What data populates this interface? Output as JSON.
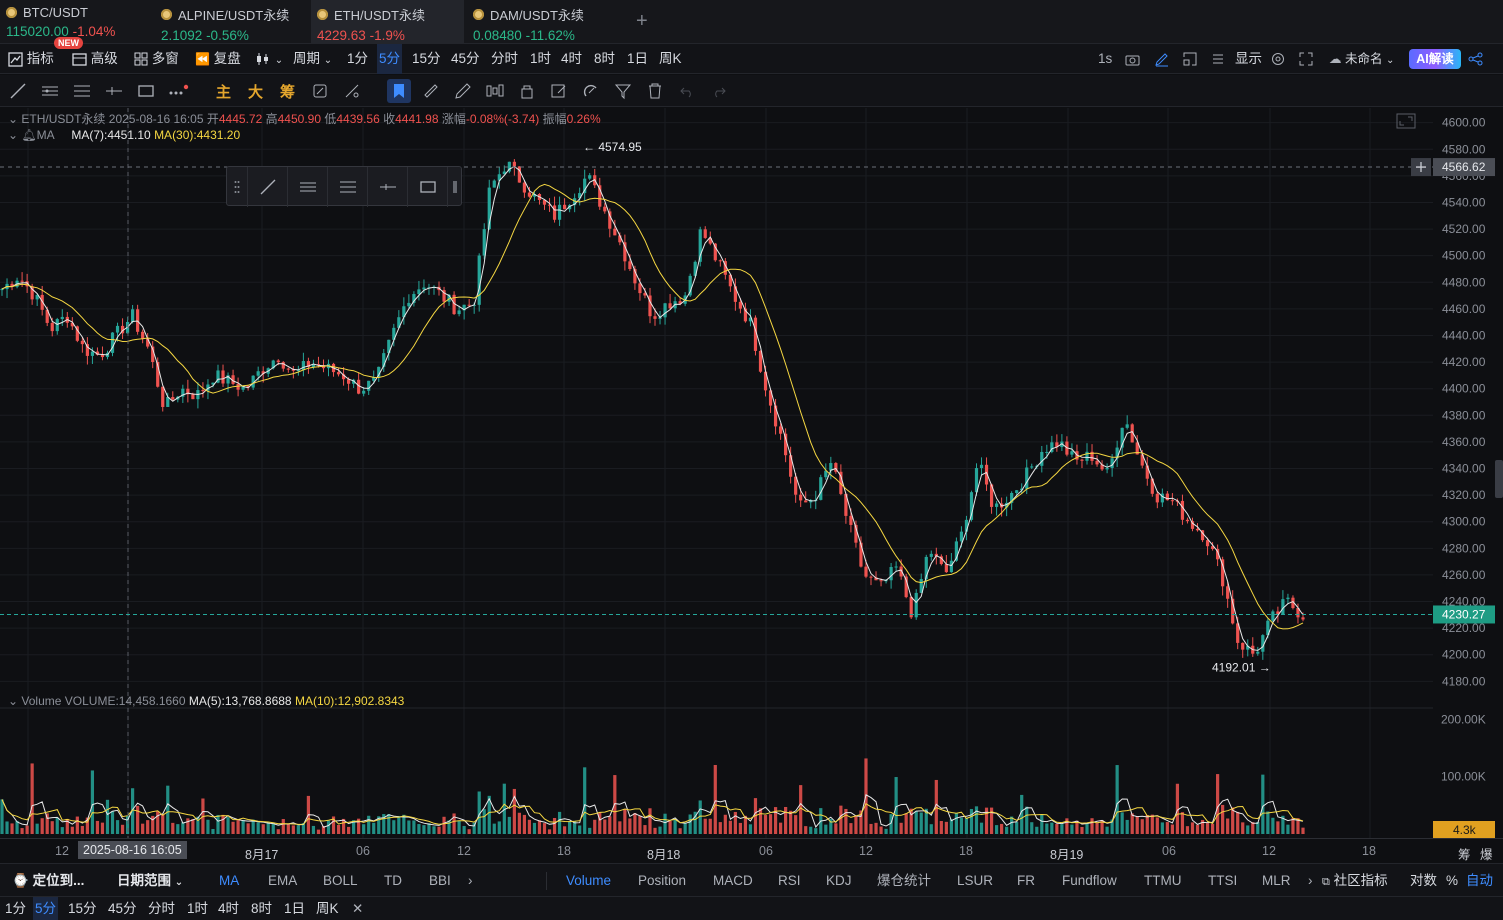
{
  "tabs": [
    {
      "symbol": "BTC/USDT",
      "price": "115020.00",
      "change": "-1.04%",
      "price_dir": "up",
      "change_dir": "down"
    },
    {
      "symbol": "ALPINE/USDT永续",
      "price": "2.1092",
      "change": "-0.56%",
      "price_dir": "up",
      "change_dir": "up"
    },
    {
      "symbol": "ETH/USDT永续",
      "price": "4229.63",
      "change": "-1.9%",
      "price_dir": "down",
      "change_dir": "down"
    },
    {
      "symbol": "DAM/USDT永续",
      "price": "0.08480",
      "change": "-11.62%",
      "price_dir": "up",
      "change_dir": "up"
    }
  ],
  "new_badge": "NEW",
  "add_tab": "+",
  "toolbar": {
    "indicator": "指标",
    "advanced": "高级",
    "multi_window": "多窗",
    "replay": "复盘",
    "period": "周期",
    "periods": [
      "1分",
      "5分",
      "15分",
      "45分",
      "分时",
      "1时",
      "4时",
      "8时",
      "1日",
      "周K"
    ],
    "selected_period": "5分",
    "interval": "1s",
    "display": "显示",
    "unnamed": "未命名",
    "ai": "AI解读"
  },
  "draw_tools": {
    "main": "主",
    "big": "大",
    "chip": "筹"
  },
  "legend": {
    "symbol": "ETH/USDT永续",
    "datetime": "2025-08-16 16:05",
    "open_label": "开",
    "open": "4445.72",
    "high_label": "高",
    "high": "4450.90",
    "low_label": "低",
    "low": "4439.56",
    "close_label": "收",
    "close": "4441.98",
    "chg_label": "涨幅",
    "chg": "-0.08%(-3.74)",
    "amp_label": "振幅",
    "amp": "0.26%",
    "ma_label": "MA",
    "ma7": "MA(7):4451.10",
    "ma30": "MA(30):4431.20"
  },
  "volume_legend": {
    "label": "Volume",
    "vol": "VOLUME:14,458.1660",
    "ma5": "MA(5):13,768.8688",
    "ma10": "MA(10):12,902.8343"
  },
  "annotations": {
    "high": "4574.95",
    "low": "4192.01"
  },
  "price_axis": {
    "ticks": [
      "4600.00",
      "4580.00",
      "4560.00",
      "4540.00",
      "4520.00",
      "4500.00",
      "4480.00",
      "4460.00",
      "4440.00",
      "4420.00",
      "4400.00",
      "4380.00",
      "4360.00",
      "4340.00",
      "4320.00",
      "4300.00",
      "4280.00",
      "4260.00",
      "4240.00",
      "4220.00",
      "4200.00",
      "4180.00"
    ],
    "crosshair_price": "4566.62",
    "last_price": "4230.27"
  },
  "volume_axis": {
    "ticks": [
      "200.00K",
      "100.00K"
    ],
    "last_volume": "4.3k"
  },
  "x_axis": {
    "labels": [
      "12",
      "8月17",
      "06",
      "12",
      "18",
      "8月18",
      "06",
      "12",
      "18",
      "8月19",
      "06",
      "12",
      "18"
    ],
    "crosshair_time": "2025-08-16 16:05",
    "corner": [
      "筹",
      "爆"
    ]
  },
  "chart_data": {
    "type": "candlestick",
    "symbol": "ETH/USDT永续",
    "interval": "5分",
    "price_range": [
      4175,
      4605
    ],
    "approx_close_path": [
      4475,
      4485,
      4470,
      4445,
      4455,
      4430,
      4425,
      4440,
      4455,
      4430,
      4385,
      4400,
      4395,
      4410,
      4405,
      4400,
      4415,
      4425,
      4410,
      4420,
      4415,
      4410,
      4400,
      4405,
      4440,
      4470,
      4480,
      4470,
      4460,
      4465,
      4550,
      4570,
      4555,
      4540,
      4530,
      4545,
      4560,
      4535,
      4510,
      4480,
      4455,
      4465,
      4470,
      4520,
      4495,
      4470,
      4450,
      4400,
      4360,
      4310,
      4320,
      4345,
      4300,
      4260,
      4250,
      4265,
      4230,
      4280,
      4260,
      4290,
      4345,
      4310,
      4320,
      4335,
      4355,
      4360,
      4345,
      4350,
      4335,
      4380,
      4345,
      4320,
      4315,
      4300,
      4290,
      4260,
      4210,
      4200,
      4225,
      4240,
      4230
    ],
    "high_marker": 4574.95,
    "low_marker": 4192.01,
    "ma7_last": 4451.1,
    "ma30_last": 4431.2
  },
  "bottom_indicators": {
    "locate": "定位到...",
    "date_range": "日期范围",
    "main": [
      "MA",
      "EMA",
      "BOLL",
      "TD",
      "BBI"
    ],
    "sub": [
      "Volume",
      "Position",
      "MACD",
      "RSI",
      "KDJ",
      "爆仓统计",
      "LSUR",
      "FR",
      "Fundflow",
      "TTMU",
      "TTSI",
      "MLR"
    ],
    "community": "社区指标",
    "log": "对数",
    "pct": "%",
    "auto": "自动"
  },
  "bottom_periods": [
    "1分",
    "5分",
    "15分",
    "45分",
    "分时",
    "1时",
    "4时",
    "8时",
    "1日",
    "周K"
  ],
  "close_x": "✕"
}
